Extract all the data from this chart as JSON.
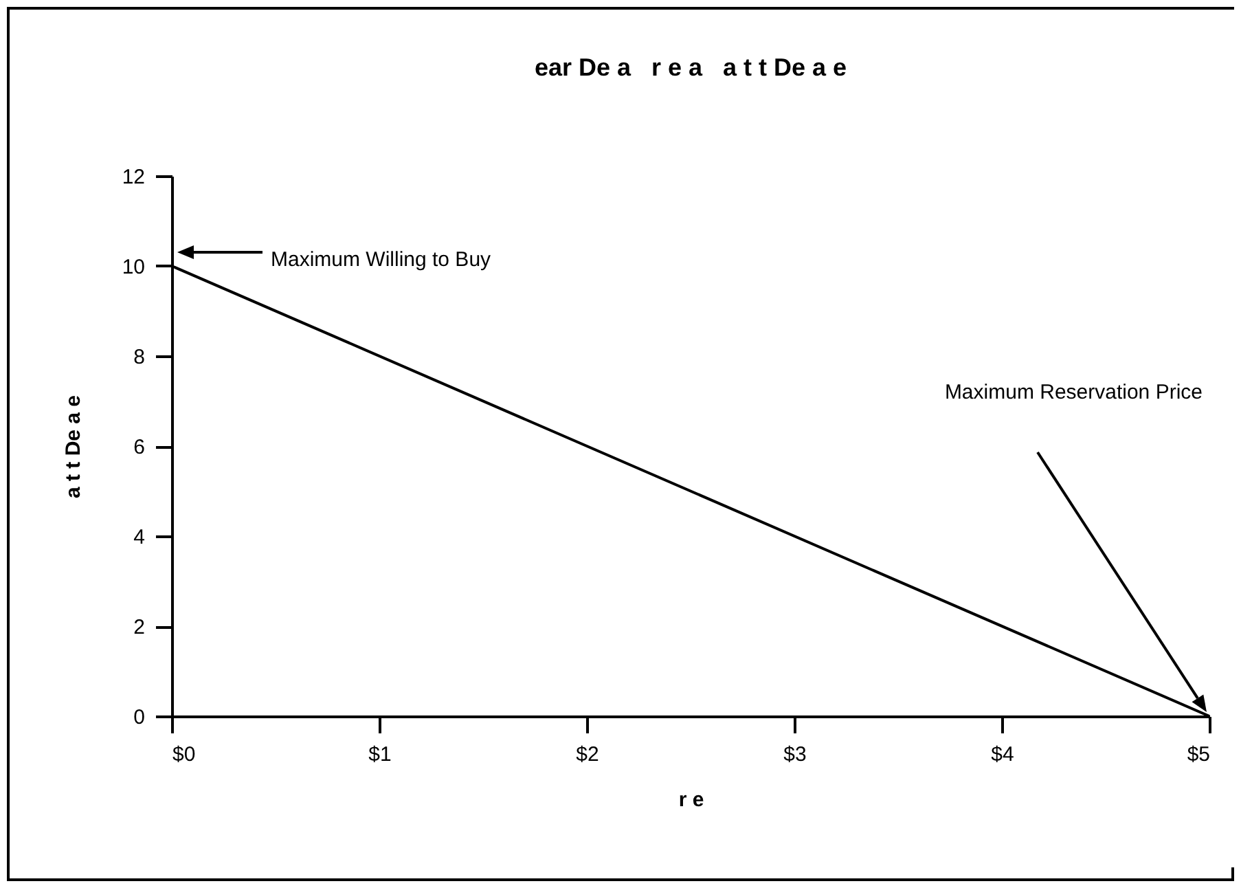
{
  "chart_data": {
    "type": "line",
    "title": "ear De a   r e a   a t t De a e",
    "xlabel": "r e",
    "ylabel": "a t t De a e",
    "x": [
      0,
      5
    ],
    "series": [
      {
        "color": "#000000",
        "values": [
          10,
          0
        ]
      }
    ],
    "xlim": [
      0,
      5
    ],
    "xticks": [
      {
        "value": 0,
        "label": "$0"
      },
      {
        "value": 1,
        "label": "$1"
      },
      {
        "value": 2,
        "label": "$2"
      },
      {
        "value": 3,
        "label": "$3"
      },
      {
        "value": 4,
        "label": "$4"
      },
      {
        "value": 5,
        "label": "$5"
      }
    ],
    "ylim": [
      0,
      12
    ],
    "yticks": [
      0,
      2,
      4,
      6,
      8,
      10,
      12
    ],
    "grid": false,
    "marker": "none",
    "line_style": "solid",
    "annotations": [
      "Maximum Willing to Buy",
      "Maximum Reservation Price"
    ]
  }
}
